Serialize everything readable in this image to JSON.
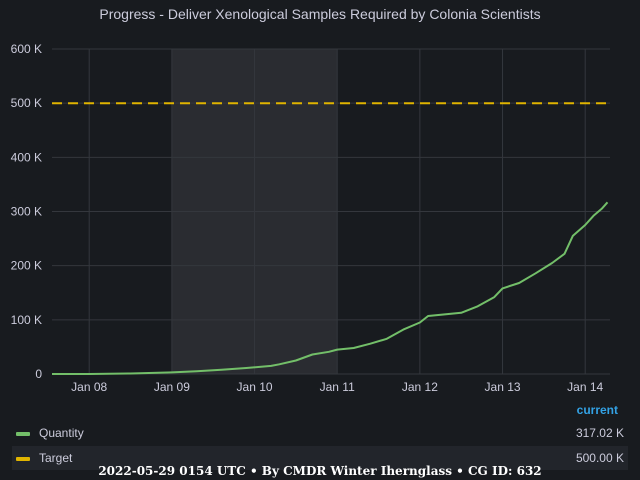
{
  "chart_data": {
    "type": "line",
    "title": "Progress - Deliver Xenological Samples Required by Colonia Scientists",
    "x_ticks": [
      "Jan 08",
      "Jan 09",
      "Jan 10",
      "Jan 11",
      "Jan 12",
      "Jan 13",
      "Jan 14"
    ],
    "y_ticks": [
      "0",
      "100 K",
      "200 K",
      "300 K",
      "400 K",
      "500 K",
      "600 K"
    ],
    "ylim": [
      0,
      600000
    ],
    "xlim": [
      7.55,
      14.3
    ],
    "grid": true,
    "shaded_region": [
      9.0,
      11.0
    ],
    "series": [
      {
        "name": "Quantity",
        "color": "#73bf69",
        "style": "solid",
        "x": [
          7.55,
          8.0,
          8.5,
          9.0,
          9.3,
          9.6,
          9.9,
          10.2,
          10.3,
          10.5,
          10.7,
          10.9,
          11.0,
          11.2,
          11.4,
          11.6,
          11.8,
          12.0,
          12.1,
          12.3,
          12.5,
          12.7,
          12.9,
          13.0,
          13.2,
          13.4,
          13.6,
          13.75,
          13.85,
          14.0,
          14.1,
          14.2,
          14.27
        ],
        "y": [
          0,
          0,
          1000,
          3000,
          5000,
          8000,
          11000,
          15000,
          18000,
          25000,
          36000,
          41000,
          45000,
          48000,
          56000,
          65000,
          82000,
          95000,
          107000,
          110000,
          113000,
          125000,
          142000,
          158000,
          168000,
          186000,
          205000,
          222000,
          255000,
          275000,
          292000,
          305000,
          317020
        ]
      },
      {
        "name": "Target",
        "color": "#e0b400",
        "style": "dashed",
        "x": [
          7.55,
          14.3
        ],
        "y": [
          500000,
          500000
        ]
      }
    ]
  },
  "legend": {
    "header": "current",
    "rows": [
      {
        "name": "Quantity",
        "value": "317.02 K",
        "color": "#73bf69"
      },
      {
        "name": "Target",
        "value": "500.00 K",
        "color": "#e0b400"
      }
    ]
  },
  "footer": "2022-05-29 0154 UTC • By CMDR Winter Iherngl​ass • CG ID: 632"
}
